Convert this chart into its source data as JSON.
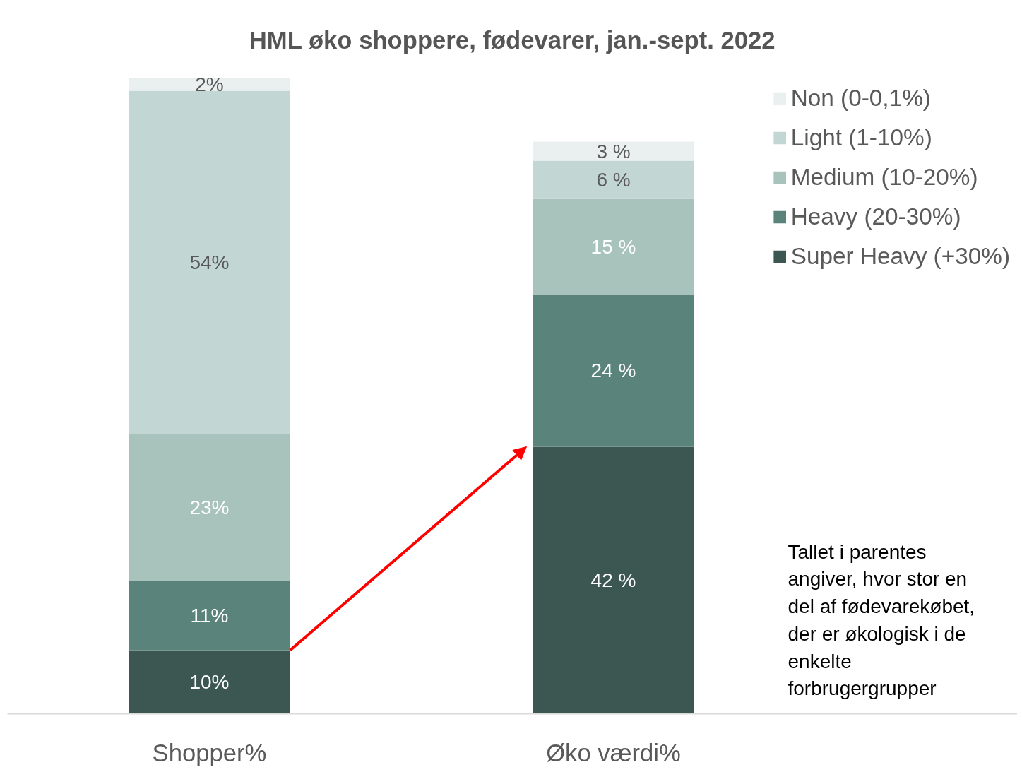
{
  "chart_data": {
    "type": "bar",
    "title": "HML øko shoppere, fødevarer, jan.-sept. 2022",
    "categories": [
      "Shopper%",
      "Øko værdi%"
    ],
    "stacked": true,
    "legend": "right",
    "series": [
      {
        "name": "Super Heavy (+30%)",
        "color": "#3c5752",
        "values": [
          10,
          42
        ],
        "value_labels": [
          "10%",
          "42 %"
        ]
      },
      {
        "name": "Heavy (20-30%)",
        "color": "#5a837c",
        "values": [
          11,
          24
        ],
        "value_labels": [
          "11%",
          "24 %"
        ]
      },
      {
        "name": "Medium (10-20%)",
        "color": "#a8c2bc",
        "values": [
          23,
          15
        ],
        "value_labels": [
          "23%",
          "15 %"
        ]
      },
      {
        "name": "Light (1-10%)",
        "color": "#c2d6d3",
        "values": [
          54,
          6
        ],
        "value_labels": [
          "54%",
          "6 %"
        ]
      },
      {
        "name": "Non (0-0,1%)",
        "color": "#e9f0ef",
        "values": [
          2,
          3
        ],
        "value_labels": [
          "2%",
          "3 %"
        ]
      }
    ],
    "annotations": [
      "Tallet i parentes\nangiver, hvor stor en\ndel af fødevarekøbet,\nder er økologisk i de\nenkelte\nforbrugergrupper"
    ]
  }
}
